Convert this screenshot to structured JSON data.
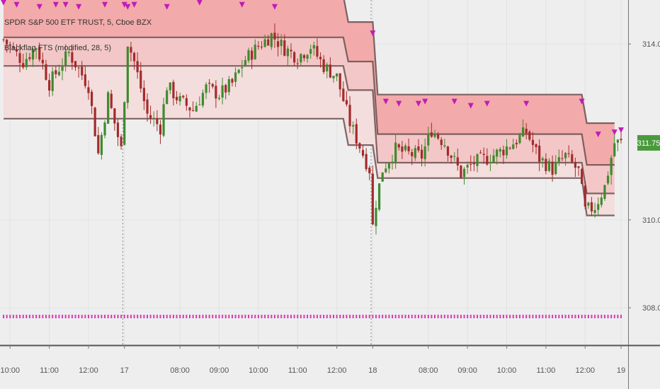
{
  "chart_data": {
    "type": "candlestick",
    "title": "SPDR S&P 500 ETF TRUST, 5, Cboe BZX",
    "indicator": "Blackflag FTS (modified, 28, 5)",
    "last_price": "311.75",
    "ylim": [
      307.15,
      315.0
    ],
    "y_ticks": [
      "314.00",
      "310.00",
      "308.00"
    ],
    "y_tick_values": [
      314.0,
      310.0,
      308.0
    ],
    "x_tick_labels": [
      "10:00",
      "11:00",
      "12:00",
      "17",
      "08:00",
      "09:00",
      "10:00",
      "11:00",
      "12:00",
      "18",
      "08:00",
      "09:00",
      "10:00",
      "11:00",
      "12:00",
      "19"
    ],
    "x_tick_index": [
      2,
      14,
      26,
      37,
      54,
      66,
      78,
      90,
      102,
      113,
      130,
      142,
      154,
      166,
      178,
      189
    ],
    "session_breaks": [
      37,
      113
    ],
    "bar_count": 190,
    "bands": {
      "top": [
        {
          "from": 0,
          "to": 104,
          "value": 315.1
        },
        {
          "from": 104,
          "to": 113,
          "value": 314.5
        },
        {
          "from": 113,
          "to": 177,
          "value": 312.85
        },
        {
          "from": 177,
          "to": 187,
          "value": 312.2
        }
      ],
      "mid": [
        {
          "from": 0,
          "to": 104,
          "value": 314.15
        },
        {
          "from": 104,
          "to": 113,
          "value": 313.6
        },
        {
          "from": 113,
          "to": 177,
          "value": 311.95
        },
        {
          "from": 177,
          "to": 187,
          "value": 311.25
        }
      ],
      "low": [
        {
          "from": 0,
          "to": 104,
          "value": 313.5
        },
        {
          "from": 104,
          "to": 113,
          "value": 312.95
        },
        {
          "from": 113,
          "to": 177,
          "value": 311.3
        },
        {
          "from": 177,
          "to": 187,
          "value": 310.6
        }
      ],
      "base": [
        {
          "from": 0,
          "to": 104,
          "value": 312.3
        },
        {
          "from": 104,
          "to": 113,
          "value": 311.7
        },
        {
          "from": 113,
          "to": 177,
          "value": 310.95
        },
        {
          "from": 177,
          "to": 187,
          "value": 310.1
        }
      ]
    },
    "path_points": [
      [
        0,
        314.1
      ],
      [
        6,
        313.6
      ],
      [
        10,
        313.95
      ],
      [
        14,
        313.1
      ],
      [
        20,
        313.8
      ],
      [
        26,
        313.05
      ],
      [
        29,
        311.5
      ],
      [
        32,
        312.8
      ],
      [
        36,
        311.6
      ],
      [
        38,
        314.05
      ],
      [
        40,
        313.6
      ],
      [
        44,
        312.4
      ],
      [
        48,
        312.1
      ],
      [
        50,
        313.05
      ],
      [
        54,
        312.7
      ],
      [
        58,
        312.5
      ],
      [
        62,
        313.0
      ],
      [
        66,
        312.85
      ],
      [
        70,
        313.1
      ],
      [
        74,
        313.65
      ],
      [
        78,
        313.95
      ],
      [
        82,
        314.2
      ],
      [
        86,
        313.9
      ],
      [
        90,
        313.7
      ],
      [
        94,
        313.95
      ],
      [
        98,
        313.5
      ],
      [
        102,
        313.25
      ],
      [
        106,
        312.2
      ],
      [
        110,
        311.5
      ],
      [
        112,
        311.15
      ],
      [
        113,
        309.85
      ],
      [
        114,
        310.4
      ],
      [
        116,
        311.15
      ],
      [
        120,
        311.6
      ],
      [
        124,
        311.5
      ],
      [
        128,
        311.45
      ],
      [
        131,
        312.05
      ],
      [
        135,
        311.75
      ],
      [
        140,
        311.05
      ],
      [
        144,
        311.3
      ],
      [
        148,
        311.4
      ],
      [
        152,
        311.55
      ],
      [
        156,
        311.75
      ],
      [
        160,
        312.0
      ],
      [
        164,
        311.4
      ],
      [
        168,
        311.15
      ],
      [
        172,
        311.45
      ],
      [
        176,
        311.1
      ],
      [
        178,
        310.2
      ],
      [
        181,
        310.3
      ],
      [
        184,
        310.75
      ],
      [
        187,
        311.75
      ]
    ],
    "markers": [
      38,
      40,
      0,
      4,
      11,
      16,
      19,
      23,
      31,
      37,
      50,
      60,
      73,
      83,
      113,
      117,
      121,
      127,
      129,
      138,
      143,
      148,
      160,
      177,
      182,
      187,
      189
    ]
  }
}
